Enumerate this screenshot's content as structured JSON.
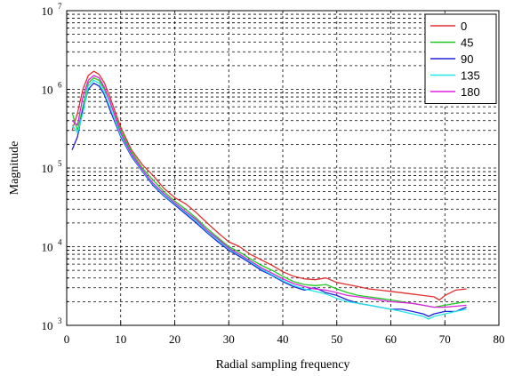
{
  "chart_data": {
    "type": "line",
    "xlabel": "Radial sampling frequency",
    "ylabel": "Magnitude",
    "xlim": [
      0,
      80
    ],
    "ylim": [
      1000,
      10000000
    ],
    "yscale": "log",
    "grid": true,
    "legend_position": "top-right",
    "x_ticks": [
      "0",
      "10",
      "20",
      "30",
      "40",
      "50",
      "60",
      "70",
      "80"
    ],
    "y_ticks": [
      {
        "base": "10",
        "exp": "3"
      },
      {
        "base": "10",
        "exp": "4"
      },
      {
        "base": "10",
        "exp": "5"
      },
      {
        "base": "10",
        "exp": "6"
      },
      {
        "base": "10",
        "exp": "7"
      }
    ],
    "series": [
      {
        "name": "0",
        "color": "#e03030",
        "x": [
          1,
          2,
          3,
          4,
          5,
          6,
          7,
          8,
          10,
          12,
          14,
          16,
          18,
          20,
          22,
          24,
          26,
          28,
          30,
          32,
          34,
          36,
          38,
          40,
          42,
          44,
          46,
          48,
          50,
          52,
          54,
          56,
          58,
          60,
          62,
          64,
          66,
          68,
          69,
          70,
          72,
          74
        ],
        "y": [
          300000,
          500000,
          1000000,
          1500000,
          1700000,
          1550000,
          1200000,
          800000,
          330000,
          170000,
          110000,
          80000,
          55000,
          42000,
          35000,
          27000,
          20000,
          15000,
          11500,
          10000,
          8000,
          6800,
          5800,
          4800,
          4200,
          3900,
          3800,
          4000,
          3500,
          3300,
          3100,
          2900,
          2800,
          2700,
          2600,
          2500,
          2400,
          2300,
          2100,
          2400,
          2800,
          2900
        ]
      },
      {
        "name": "45",
        "color": "#22c822",
        "x": [
          1,
          2,
          3,
          4,
          5,
          6,
          7,
          8,
          10,
          12,
          14,
          16,
          18,
          20,
          22,
          24,
          26,
          28,
          30,
          32,
          34,
          36,
          38,
          40,
          42,
          44,
          46,
          48,
          50,
          52,
          54,
          56,
          58,
          60,
          62,
          64,
          66,
          68,
          70,
          72,
          74
        ],
        "y": [
          500000,
          300000,
          600000,
          1200000,
          1400000,
          1300000,
          1000000,
          700000,
          300000,
          160000,
          100000,
          70000,
          50000,
          38000,
          30000,
          23000,
          17000,
          13000,
          10000,
          8500,
          7000,
          5800,
          5000,
          4200,
          3600,
          3300,
          3200,
          3300,
          2900,
          2600,
          2400,
          2300,
          2200,
          2100,
          2000,
          1900,
          1800,
          1700,
          1800,
          1900,
          2000
        ]
      },
      {
        "name": "90",
        "color": "#2020d8",
        "x": [
          1,
          2,
          3,
          4,
          5,
          6,
          7,
          8,
          10,
          12,
          14,
          16,
          18,
          20,
          22,
          24,
          26,
          28,
          30,
          32,
          34,
          36,
          38,
          40,
          42,
          44,
          46,
          48,
          50,
          52,
          54,
          56,
          58,
          60,
          62,
          64,
          66,
          67,
          68,
          70,
          72,
          74
        ],
        "y": [
          170000,
          250000,
          550000,
          1000000,
          1200000,
          1100000,
          850000,
          550000,
          250000,
          140000,
          90000,
          60000,
          44000,
          34000,
          26000,
          20000,
          15000,
          11500,
          9000,
          7500,
          6200,
          5000,
          4300,
          3600,
          3100,
          2800,
          3000,
          2600,
          2400,
          2100,
          1900,
          1800,
          1700,
          1600,
          1600,
          1500,
          1400,
          1300,
          1400,
          1500,
          1500,
          1700
        ]
      },
      {
        "name": "135",
        "color": "#20e8e8",
        "x": [
          1,
          2,
          3,
          4,
          5,
          6,
          7,
          8,
          10,
          12,
          14,
          16,
          18,
          20,
          22,
          24,
          26,
          28,
          30,
          32,
          34,
          36,
          38,
          40,
          42,
          44,
          46,
          48,
          50,
          52,
          54,
          56,
          58,
          60,
          62,
          64,
          66,
          67,
          68,
          70,
          72,
          74
        ],
        "y": [
          350000,
          280000,
          500000,
          1100000,
          1300000,
          1200000,
          900000,
          600000,
          260000,
          145000,
          92000,
          62000,
          45000,
          35000,
          27000,
          21000,
          15500,
          12000,
          9300,
          7800,
          6400,
          5200,
          4400,
          3700,
          3200,
          2900,
          2700,
          2500,
          2200,
          2000,
          1900,
          1800,
          1700,
          1600,
          1500,
          1400,
          1300,
          1200,
          1300,
          1400,
          1500,
          1600
        ]
      },
      {
        "name": "180",
        "color": "#e020e0",
        "x": [
          1,
          2,
          3,
          4,
          5,
          6,
          7,
          8,
          10,
          12,
          14,
          16,
          18,
          20,
          22,
          24,
          26,
          28,
          30,
          32,
          34,
          36,
          38,
          40,
          42,
          44,
          46,
          48,
          50,
          52,
          54,
          56,
          58,
          60,
          62,
          64,
          66,
          68,
          70,
          72,
          74
        ],
        "y": [
          400000,
          350000,
          800000,
          1300000,
          1500000,
          1400000,
          1050000,
          700000,
          280000,
          150000,
          95000,
          64000,
          47000,
          36000,
          28000,
          22000,
          16000,
          12500,
          9600,
          8000,
          6600,
          5400,
          4600,
          3900,
          3400,
          3100,
          2900,
          2800,
          2600,
          2400,
          2300,
          2200,
          2100,
          2000,
          1950,
          1900,
          1800,
          1700,
          1700,
          1750,
          1800
        ]
      }
    ]
  }
}
